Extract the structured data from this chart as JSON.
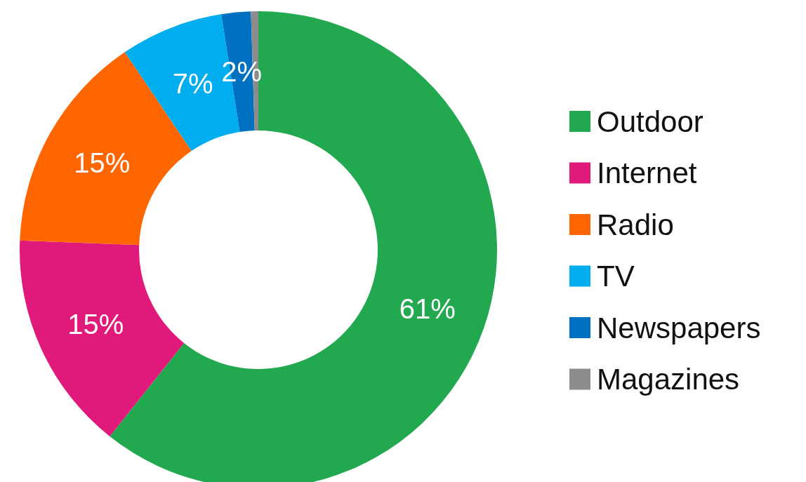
{
  "chart_data": {
    "type": "donut",
    "categories": [
      "Outdoor",
      "Internet",
      "Radio",
      "TV",
      "Newspapers",
      "Magazines"
    ],
    "values": [
      61,
      15,
      15,
      7,
      2,
      0.5
    ],
    "value_labels": [
      "61%",
      "15%",
      "15%",
      "7%",
      "2%",
      null
    ],
    "colors": [
      "#22a84e",
      "#e0197a",
      "#ff6600",
      "#00aeef",
      "#0070c0",
      "#8c8c8c"
    ],
    "legend": "right"
  }
}
